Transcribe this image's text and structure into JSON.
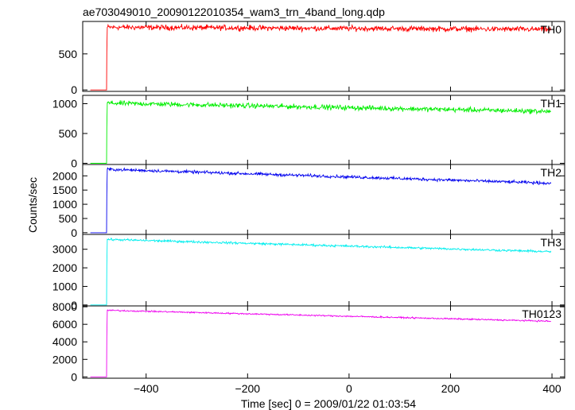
{
  "chart_data": {
    "type": "line",
    "title": "ae703049010_20090122010354_wam3_trn_4band_long.qdp",
    "xlabel": "Time [sec] 0 = 2009/01/22 01:03:54",
    "ylabel": "Counts/sec",
    "xlim": [
      -525,
      425
    ],
    "x_ticks": [
      -400,
      -200,
      0,
      200,
      400
    ],
    "x_tick_labels": [
      "−400",
      "−200",
      "0",
      "200",
      "400"
    ],
    "trigger_time": -478,
    "grid": false,
    "panels": [
      {
        "name": "TH0",
        "color": "#ff0000",
        "ylim": [
          -20,
          950
        ],
        "y_ticks": [
          0,
          500
        ],
        "y_tick_labels": [
          "0",
          "500"
        ],
        "pre_level": 0,
        "start_level": 870,
        "end_level": 840,
        "noise": 32
      },
      {
        "name": "TH1",
        "color": "#00ee00",
        "ylim": [
          -20,
          1140
        ],
        "y_ticks": [
          0,
          500,
          1000
        ],
        "y_tick_labels": [
          "0",
          "500",
          "1000"
        ],
        "pre_level": 0,
        "start_level": 1010,
        "end_level": 870,
        "noise": 35
      },
      {
        "name": "TH2",
        "color": "#0000ee",
        "ylim": [
          -60,
          2400
        ],
        "y_ticks": [
          0,
          500,
          1000,
          1500,
          2000
        ],
        "y_tick_labels": [
          "0",
          "500",
          "1000",
          "1500",
          "2000"
        ],
        "pre_level": 0,
        "start_level": 2230,
        "end_level": 1740,
        "noise": 45
      },
      {
        "name": "TH3",
        "color": "#00eeee",
        "ylim": [
          -50,
          3800
        ],
        "y_ticks": [
          0,
          1000,
          2000,
          3000
        ],
        "y_tick_labels": [
          "0",
          "1000",
          "2000",
          "3000"
        ],
        "pre_level": 0,
        "start_level": 3530,
        "end_level": 2870,
        "noise": 50
      },
      {
        "name": "TH0123",
        "color": "#ee00ee",
        "ylim": [
          -150,
          8100
        ],
        "y_ticks": [
          0,
          2000,
          4000,
          6000,
          8000
        ],
        "y_tick_labels": [
          "0",
          "2000",
          "4000",
          "6000",
          "8000"
        ],
        "pre_level": 0,
        "start_level": 7600,
        "end_level": 6350,
        "noise": 70
      }
    ]
  }
}
